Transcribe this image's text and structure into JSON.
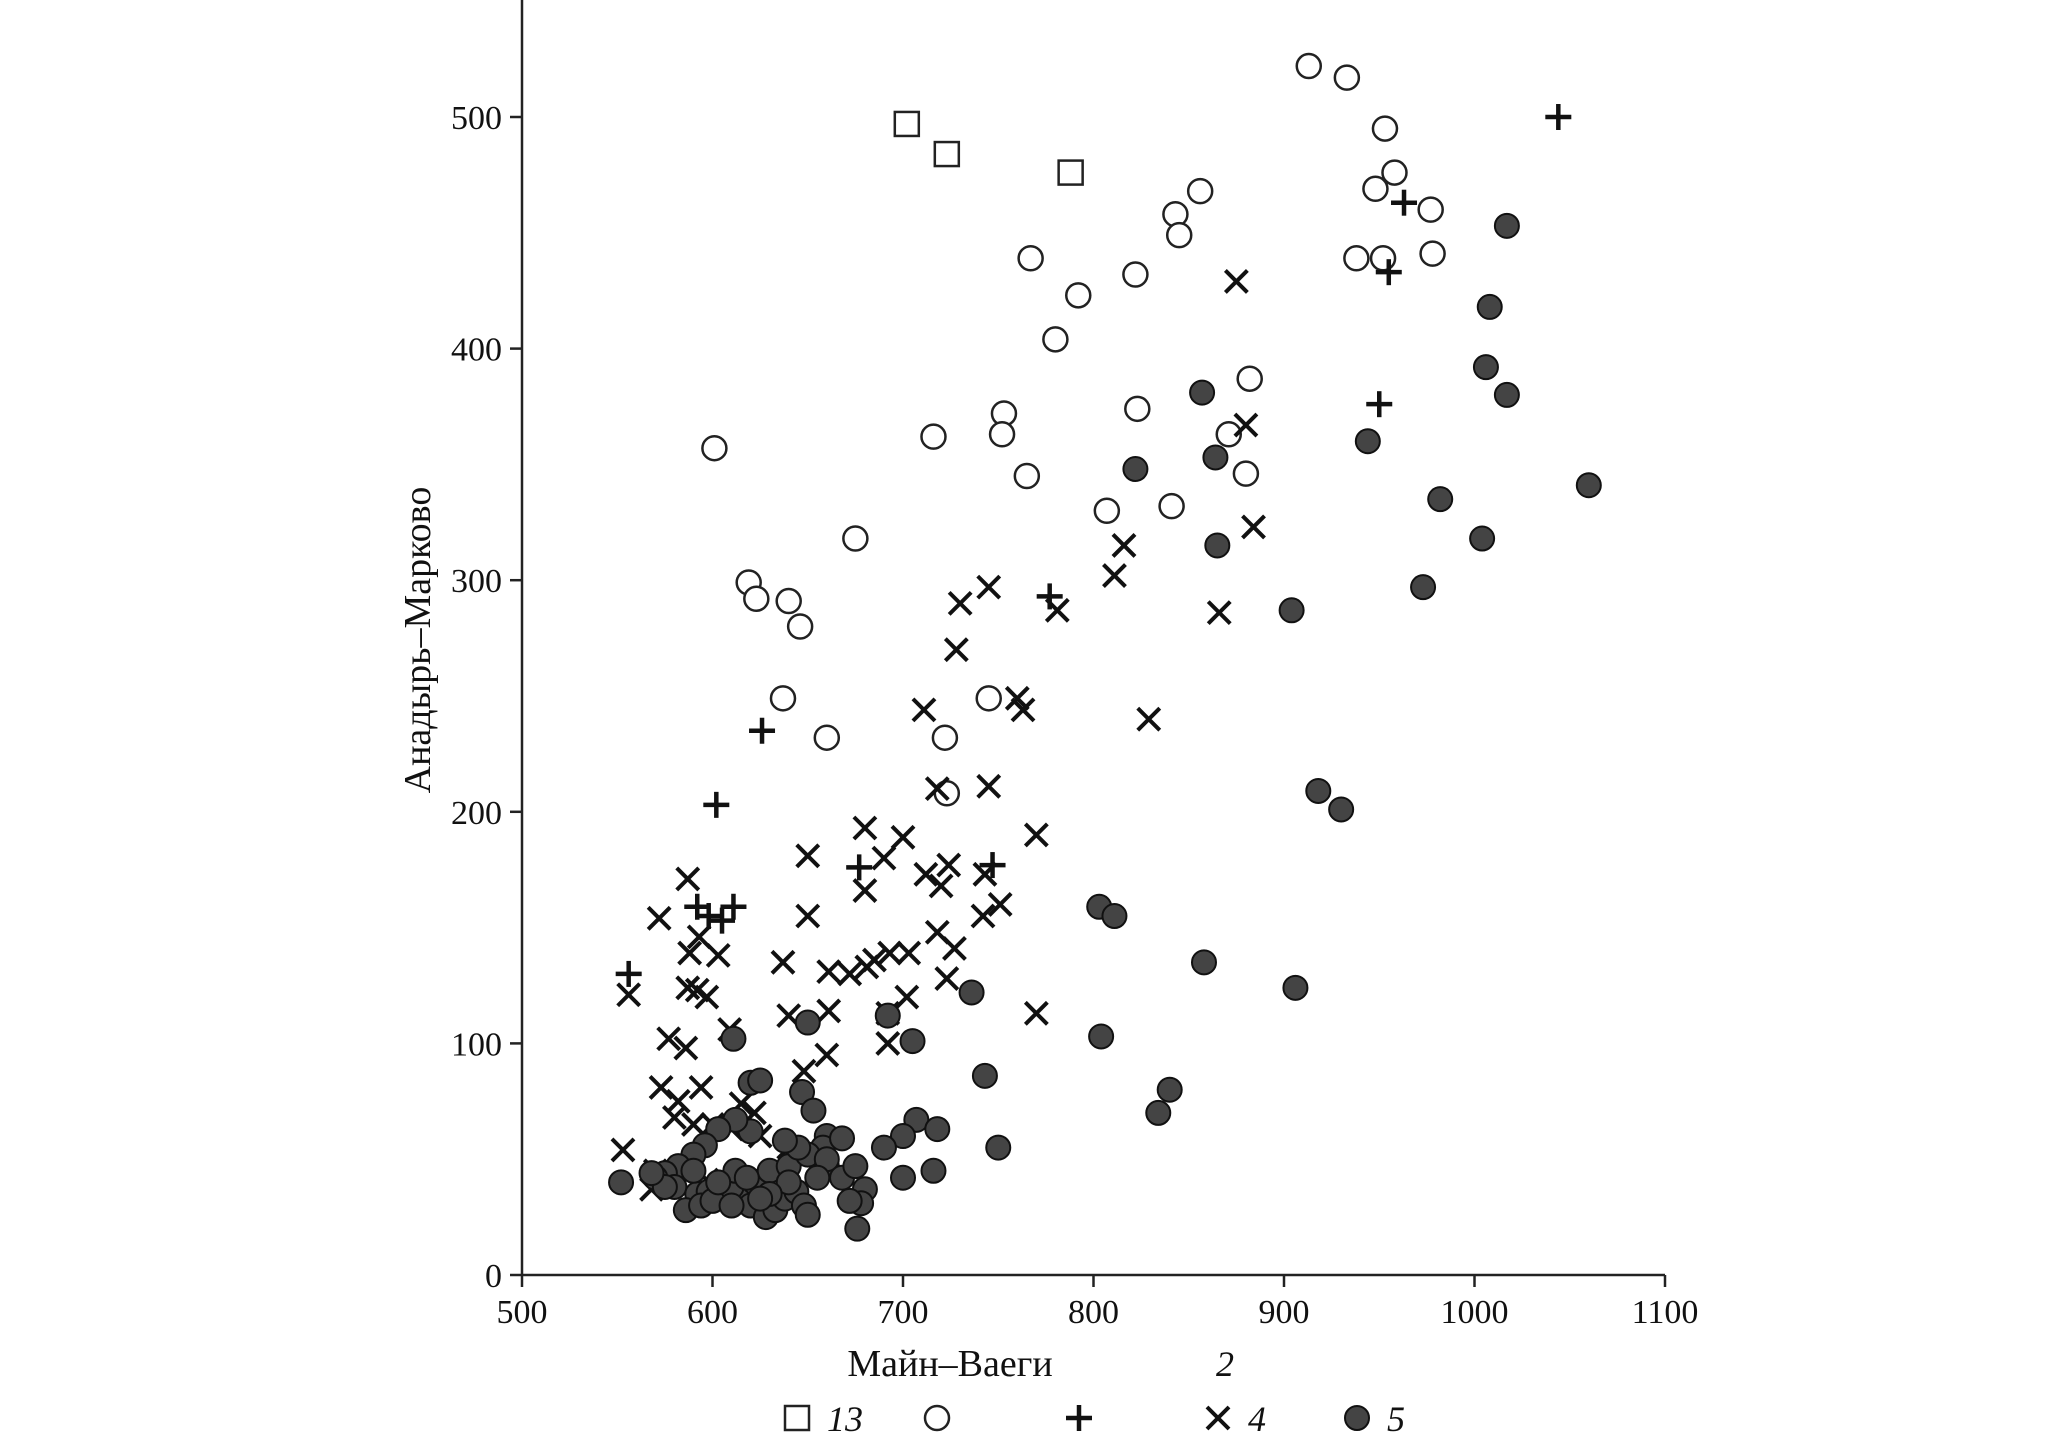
{
  "chart_data": {
    "type": "scatter",
    "title": "",
    "xlabel": "Майн–Ваеги",
    "ylabel": "Анадырь–Марково",
    "xlim": [
      500,
      1100
    ],
    "ylim": [
      0,
      550
    ],
    "x_ticks": [
      "500",
      "600",
      "700",
      "800",
      "900",
      "1000",
      "1100"
    ],
    "y_ticks": [
      "0",
      "100",
      "200",
      "300",
      "400",
      "500"
    ],
    "x_tick_values": [
      500,
      600,
      700,
      800,
      900,
      1000,
      1100
    ],
    "y_tick_values": [
      0,
      100,
      200,
      300,
      400,
      500
    ],
    "grid": false,
    "legend_position": "bottom",
    "stray_label": "2",
    "series": [
      {
        "name": "13",
        "marker": "square-open",
        "points": [
          [
            702,
            497
          ],
          [
            723,
            484
          ],
          [
            788,
            476
          ]
        ]
      },
      {
        "name": "",
        "marker": "circle-open",
        "points": [
          [
            913,
            522
          ],
          [
            933,
            517
          ],
          [
            953,
            495
          ],
          [
            958,
            476
          ],
          [
            948,
            469
          ],
          [
            977,
            460
          ],
          [
            856,
            468
          ],
          [
            843,
            458
          ],
          [
            845,
            449
          ],
          [
            767,
            439
          ],
          [
            938,
            439
          ],
          [
            952,
            439
          ],
          [
            978,
            441
          ],
          [
            822,
            432
          ],
          [
            792,
            423
          ],
          [
            780,
            404
          ],
          [
            882,
            387
          ],
          [
            823,
            374
          ],
          [
            753,
            372
          ],
          [
            716,
            362
          ],
          [
            752,
            363
          ],
          [
            871,
            363
          ],
          [
            601,
            357
          ],
          [
            765,
            345
          ],
          [
            880,
            346
          ],
          [
            807,
            330
          ],
          [
            841,
            332
          ],
          [
            675,
            318
          ],
          [
            619,
            299
          ],
          [
            623,
            292
          ],
          [
            640,
            291
          ],
          [
            646,
            280
          ],
          [
            637,
            249
          ],
          [
            745,
            249
          ],
          [
            660,
            232
          ],
          [
            722,
            232
          ],
          [
            723,
            208
          ]
        ]
      },
      {
        "name": "",
        "marker": "plus",
        "points": [
          [
            1044,
            500
          ],
          [
            963,
            463
          ],
          [
            955,
            433
          ],
          [
            950,
            376
          ],
          [
            777,
            293
          ],
          [
            626,
            235
          ],
          [
            602,
            203
          ],
          [
            592,
            159
          ],
          [
            598,
            155
          ],
          [
            611,
            159
          ],
          [
            605,
            153
          ],
          [
            556,
            130
          ],
          [
            677,
            176
          ],
          [
            747,
            177
          ]
        ]
      },
      {
        "name": "4",
        "marker": "x",
        "points": [
          [
            875,
            429
          ],
          [
            880,
            367
          ],
          [
            884,
            323
          ],
          [
            816,
            315
          ],
          [
            811,
            302
          ],
          [
            745,
            297
          ],
          [
            730,
            290
          ],
          [
            781,
            287
          ],
          [
            866,
            286
          ],
          [
            728,
            270
          ],
          [
            760,
            249
          ],
          [
            763,
            244
          ],
          [
            711,
            244
          ],
          [
            829,
            240
          ],
          [
            718,
            210
          ],
          [
            745,
            211
          ],
          [
            680,
            193
          ],
          [
            770,
            190
          ],
          [
            700,
            189
          ],
          [
            650,
            181
          ],
          [
            690,
            180
          ],
          [
            724,
            177
          ],
          [
            712,
            173
          ],
          [
            743,
            173
          ],
          [
            720,
            168
          ],
          [
            680,
            166
          ],
          [
            587,
            171
          ],
          [
            572,
            154
          ],
          [
            650,
            155
          ],
          [
            742,
            155
          ],
          [
            751,
            160
          ],
          [
            593,
            146
          ],
          [
            588,
            139
          ],
          [
            603,
            138
          ],
          [
            718,
            148
          ],
          [
            727,
            141
          ],
          [
            693,
            139
          ],
          [
            703,
            139
          ],
          [
            637,
            135
          ],
          [
            685,
            136
          ],
          [
            661,
            131
          ],
          [
            672,
            130
          ],
          [
            681,
            133
          ],
          [
            723,
            128
          ],
          [
            556,
            121
          ],
          [
            587,
            124
          ],
          [
            592,
            123
          ],
          [
            597,
            120
          ],
          [
            702,
            120
          ],
          [
            661,
            114
          ],
          [
            640,
            112
          ],
          [
            692,
            113
          ],
          [
            770,
            113
          ],
          [
            609,
            106
          ],
          [
            577,
            102
          ],
          [
            586,
            98
          ],
          [
            692,
            100
          ],
          [
            660,
            95
          ],
          [
            648,
            88
          ],
          [
            573,
            81
          ],
          [
            594,
            81
          ],
          [
            582,
            75
          ],
          [
            615,
            74
          ],
          [
            622,
            70
          ],
          [
            580,
            68
          ],
          [
            590,
            65
          ],
          [
            600,
            65
          ],
          [
            610,
            63
          ],
          [
            625,
            60
          ],
          [
            640,
            55
          ],
          [
            553,
            54
          ],
          [
            570,
            45
          ],
          [
            580,
            40
          ],
          [
            568,
            37
          ],
          [
            587,
            43
          ],
          [
            597,
            41
          ],
          [
            610,
            38
          ],
          [
            620,
            42
          ]
        ]
      },
      {
        "name": "5",
        "marker": "circle-filled",
        "points": [
          [
            1017,
            453
          ],
          [
            1008,
            418
          ],
          [
            1006,
            392
          ],
          [
            1017,
            380
          ],
          [
            1060,
            341
          ],
          [
            944,
            360
          ],
          [
            857,
            381
          ],
          [
            864,
            353
          ],
          [
            822,
            348
          ],
          [
            982,
            335
          ],
          [
            865,
            315
          ],
          [
            1004,
            318
          ],
          [
            973,
            297
          ],
          [
            904,
            287
          ],
          [
            918,
            209
          ],
          [
            930,
            201
          ],
          [
            803,
            159
          ],
          [
            811,
            155
          ],
          [
            858,
            135
          ],
          [
            906,
            124
          ],
          [
            736,
            122
          ],
          [
            692,
            112
          ],
          [
            611,
            102
          ],
          [
            650,
            109
          ],
          [
            705,
            101
          ],
          [
            804,
            103
          ],
          [
            743,
            86
          ],
          [
            620,
            83
          ],
          [
            625,
            84
          ],
          [
            840,
            80
          ],
          [
            834,
            70
          ],
          [
            647,
            79
          ],
          [
            653,
            71
          ],
          [
            707,
            67
          ],
          [
            718,
            63
          ],
          [
            660,
            60
          ],
          [
            658,
            55
          ],
          [
            668,
            59
          ],
          [
            700,
            60
          ],
          [
            690,
            55
          ],
          [
            750,
            55
          ],
          [
            620,
            62
          ],
          [
            612,
            67
          ],
          [
            603,
            63
          ],
          [
            596,
            56
          ],
          [
            590,
            52
          ],
          [
            582,
            47
          ],
          [
            575,
            44
          ],
          [
            570,
            42
          ],
          [
            552,
            40
          ],
          [
            580,
            38
          ],
          [
            592,
            35
          ],
          [
            598,
            36
          ],
          [
            605,
            33
          ],
          [
            612,
            34
          ],
          [
            618,
            36
          ],
          [
            622,
            40
          ],
          [
            630,
            45
          ],
          [
            640,
            47
          ],
          [
            650,
            52
          ],
          [
            660,
            47
          ],
          [
            668,
            42
          ],
          [
            675,
            47
          ],
          [
            680,
            37
          ],
          [
            678,
            31
          ],
          [
            672,
            32
          ],
          [
            700,
            42
          ],
          [
            716,
            45
          ],
          [
            586,
            28
          ],
          [
            594,
            30
          ],
          [
            600,
            32
          ],
          [
            610,
            38
          ],
          [
            620,
            30
          ],
          [
            628,
            25
          ],
          [
            633,
            28
          ],
          [
            638,
            33
          ],
          [
            644,
            36
          ],
          [
            648,
            30
          ],
          [
            650,
            26
          ],
          [
            640,
            40
          ],
          [
            630,
            35
          ],
          [
            612,
            45
          ],
          [
            618,
            42
          ],
          [
            625,
            33
          ],
          [
            610,
            30
          ],
          [
            603,
            40
          ],
          [
            575,
            38
          ],
          [
            568,
            44
          ],
          [
            590,
            45
          ],
          [
            676,
            20
          ],
          [
            660,
            50
          ],
          [
            655,
            42
          ],
          [
            645,
            55
          ],
          [
            638,
            58
          ]
        ]
      }
    ]
  }
}
